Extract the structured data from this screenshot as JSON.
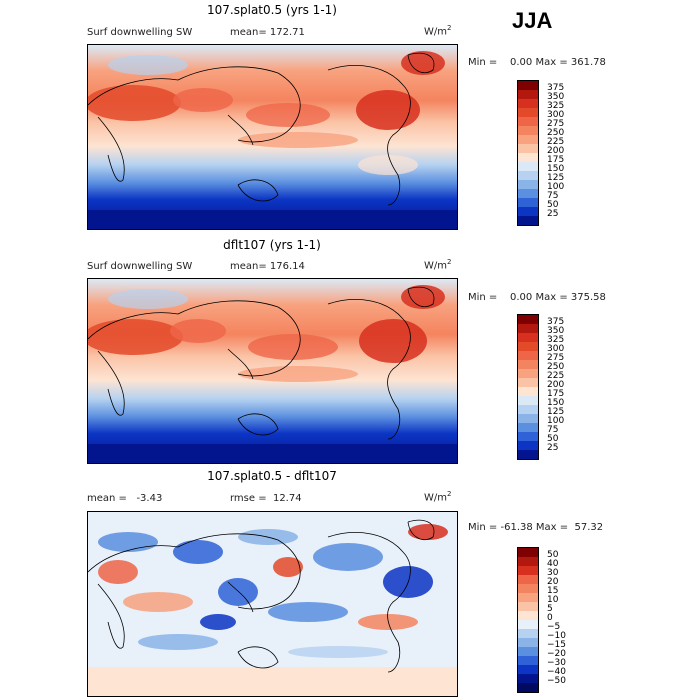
{
  "season": "JJA",
  "unit_base": "W/m",
  "unit_exp": "2",
  "panels": [
    {
      "title": "107.splat0.5 (yrs 1-1)",
      "left_label": "Surf downwelling SW",
      "stat_label": "mean= 172.71",
      "minmax": "Min =    0.00 Max = 361.78",
      "kind": "abs"
    },
    {
      "title": "dflt107 (yrs 1-1)",
      "left_label": "Surf downwelling SW",
      "stat_label": "mean= 176.14",
      "minmax": "Min =    0.00 Max = 375.58",
      "kind": "abs"
    },
    {
      "title": "107.splat0.5 - dflt107",
      "left_label": "mean =   -3.43",
      "stat_label": "rmse =  12.74",
      "minmax": "Min = -61.38 Max =  57.32",
      "kind": "diff"
    }
  ],
  "colorbars": {
    "abs": {
      "labels": [
        "375",
        "350",
        "325",
        "300",
        "275",
        "250",
        "225",
        "200",
        "175",
        "150",
        "125",
        "100",
        "75",
        "50",
        "25"
      ],
      "colors": [
        "#7f0000",
        "#b2180d",
        "#d7301f",
        "#e34a2a",
        "#ef6548",
        "#f4845f",
        "#f8a27f",
        "#fbc3a6",
        "#fde4d3",
        "#dbe9f7",
        "#b7d2f0",
        "#8ab4e8",
        "#5b8fe0",
        "#2f62d6",
        "#0c35c4",
        "#02158f"
      ]
    },
    "diff": {
      "labels": [
        "50",
        "40",
        "30",
        "20",
        "15",
        "10",
        "5",
        "0",
        "−5",
        "−10",
        "−15",
        "−20",
        "−30",
        "−40",
        "−50"
      ],
      "colors": [
        "#7f0000",
        "#b2180d",
        "#d7301f",
        "#ef6548",
        "#f4845f",
        "#f8a27f",
        "#fbc3a6",
        "#fde4d3",
        "#e8f0fa",
        "#b7d2f0",
        "#8ab4e8",
        "#5b8fe0",
        "#2f62d6",
        "#0c35c4",
        "#02158f",
        "#000a60"
      ]
    }
  }
}
